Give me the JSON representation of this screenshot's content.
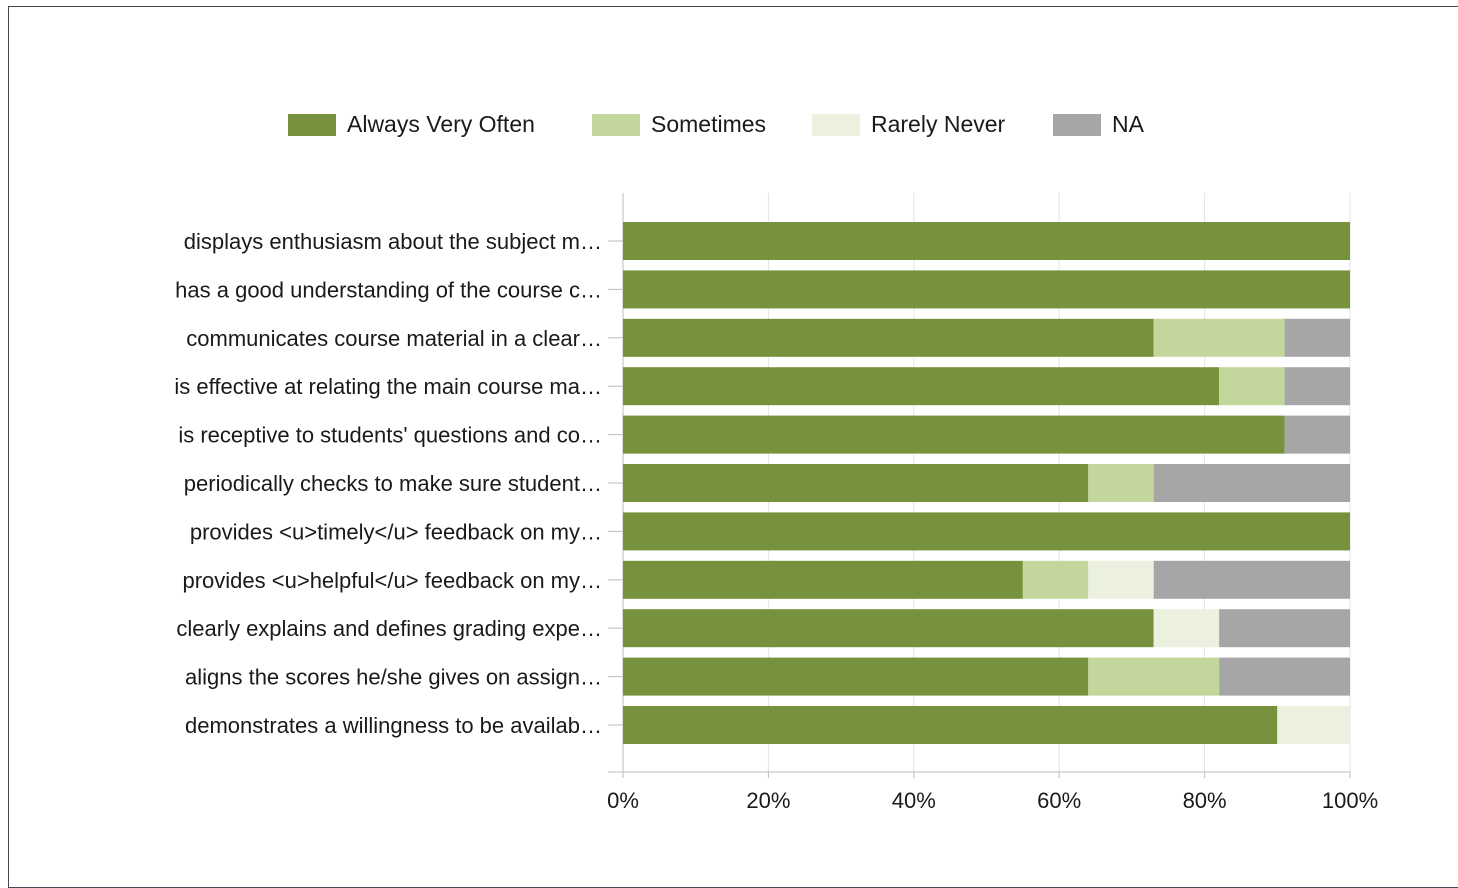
{
  "chart_data": {
    "type": "bar",
    "orientation": "horizontal",
    "stacked": true,
    "categories": [
      "displays enthusiasm about the subject m…",
      "has a good understanding of the course c…",
      "communicates course material in a clear…",
      "is effective at relating the main course ma…",
      "is receptive to students' questions and co…",
      "periodically checks to make sure student…",
      "provides <u>timely</u> feedback on my…",
      "provides <u>helpful</u> feedback on my…",
      "clearly explains and defines grading expe…",
      "aligns the scores he/she gives on assign…",
      "demonstrates a willingness to be availab…"
    ],
    "series": [
      {
        "name": "Always Very Often",
        "color": "#76923c",
        "values": [
          100,
          100,
          73,
          82,
          91,
          64,
          100,
          55,
          73,
          64,
          90
        ]
      },
      {
        "name": "Sometimes",
        "color": "#c3d69b",
        "values": [
          0,
          0,
          18,
          9,
          0,
          9,
          0,
          9,
          0,
          18,
          0
        ]
      },
      {
        "name": "Rarely Never",
        "color": "#ebf1de",
        "values": [
          0,
          0,
          0,
          0,
          0,
          0,
          0,
          9,
          9,
          0,
          10
        ]
      },
      {
        "name": "NA",
        "color": "#a6a6a6",
        "values": [
          0,
          0,
          9,
          9,
          9,
          27,
          0,
          27,
          18,
          18,
          0
        ]
      }
    ],
    "xticks": [
      "0%",
      "20%",
      "40%",
      "60%",
      "80%",
      "100%"
    ],
    "xlim": [
      0,
      100
    ],
    "grid": true,
    "legend_position": "top"
  }
}
